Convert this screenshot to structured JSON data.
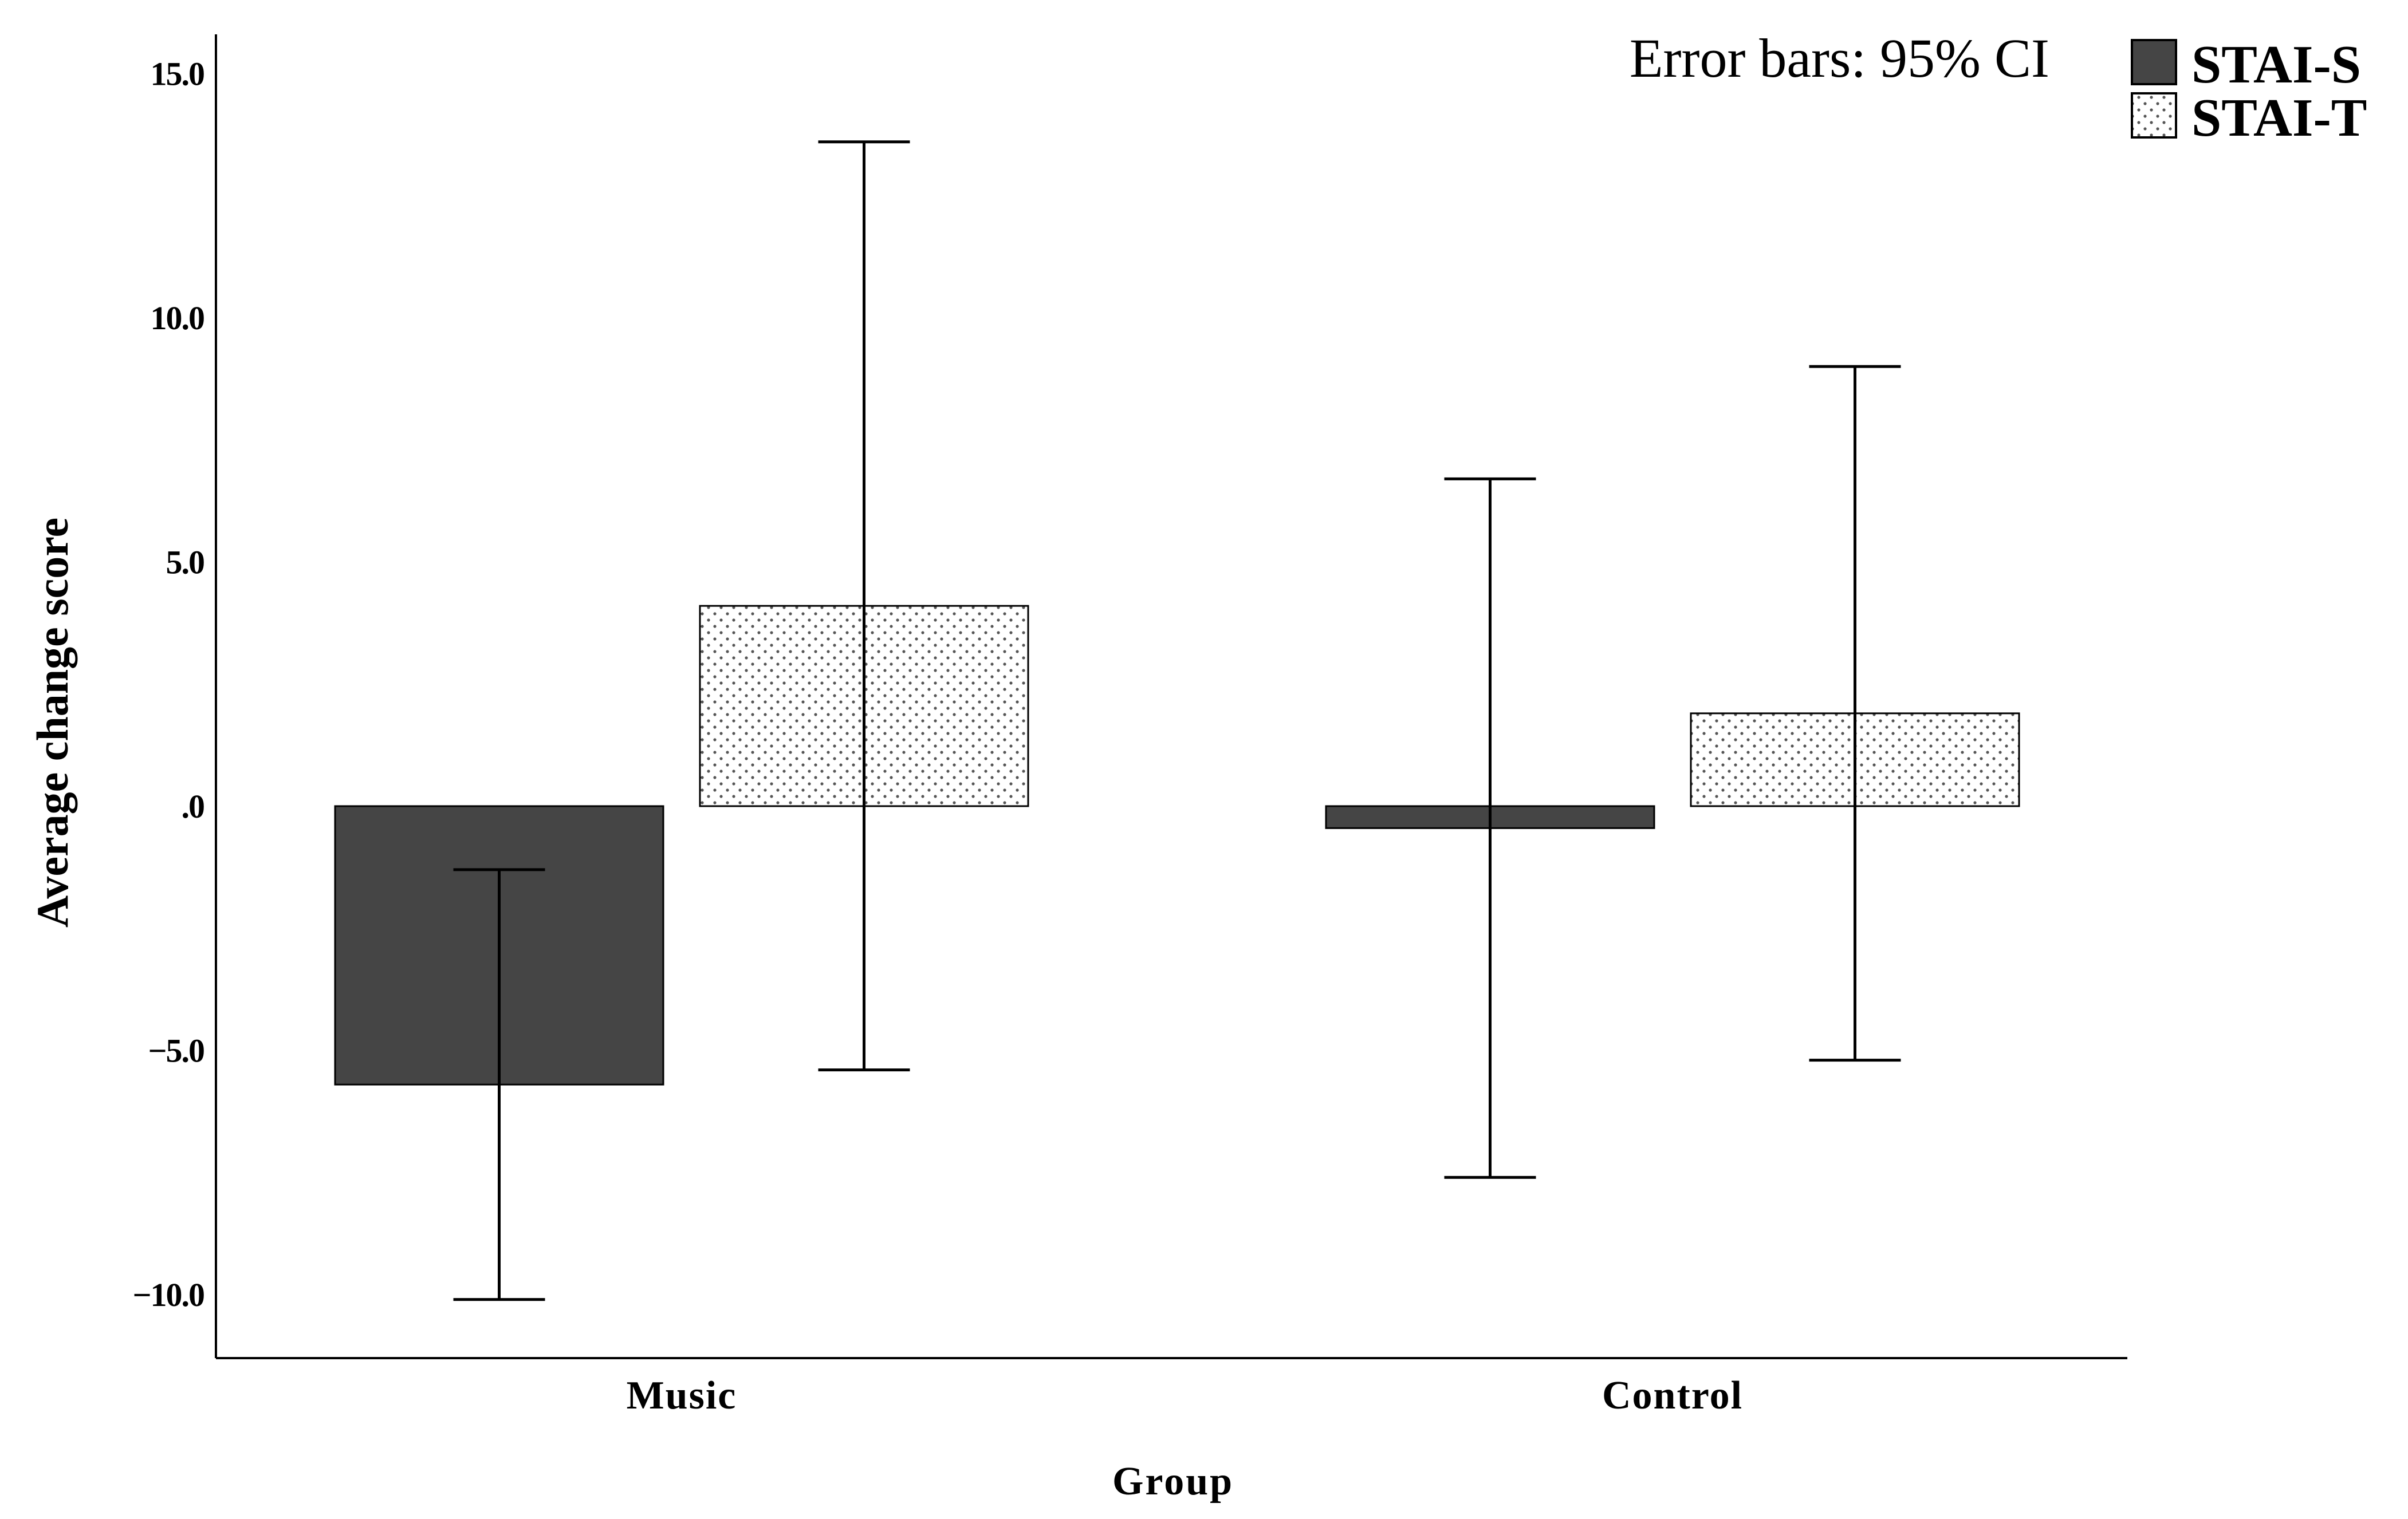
{
  "chart_data": {
    "type": "bar",
    "title": "",
    "annotation": "Error bars: 95% CI",
    "xlabel": "Group",
    "ylabel": "Average change score",
    "categories": [
      "Music",
      "Control"
    ],
    "ylim": [
      -11.3,
      15.8
    ],
    "yticks": [
      -10,
      -5,
      0,
      5,
      10,
      15
    ],
    "ytick_labels": [
      "−10.0",
      "−5.0",
      ".0",
      "5.0",
      "10.0",
      "15.0"
    ],
    "legend_position": "top-right",
    "grid": false,
    "series": [
      {
        "name": "STAI-S",
        "color": "#454545",
        "pattern": "solid",
        "values": [
          -5.7,
          -0.45
        ],
        "ci_low": [
          -10.1,
          -7.6
        ],
        "ci_high": [
          -1.3,
          6.7
        ]
      },
      {
        "name": "STAI-T",
        "color": "#ffffff",
        "pattern": "dotted",
        "values": [
          4.1,
          1.9
        ],
        "ci_low": [
          -5.4,
          -5.2
        ],
        "ci_high": [
          13.6,
          9.0
        ]
      }
    ]
  }
}
